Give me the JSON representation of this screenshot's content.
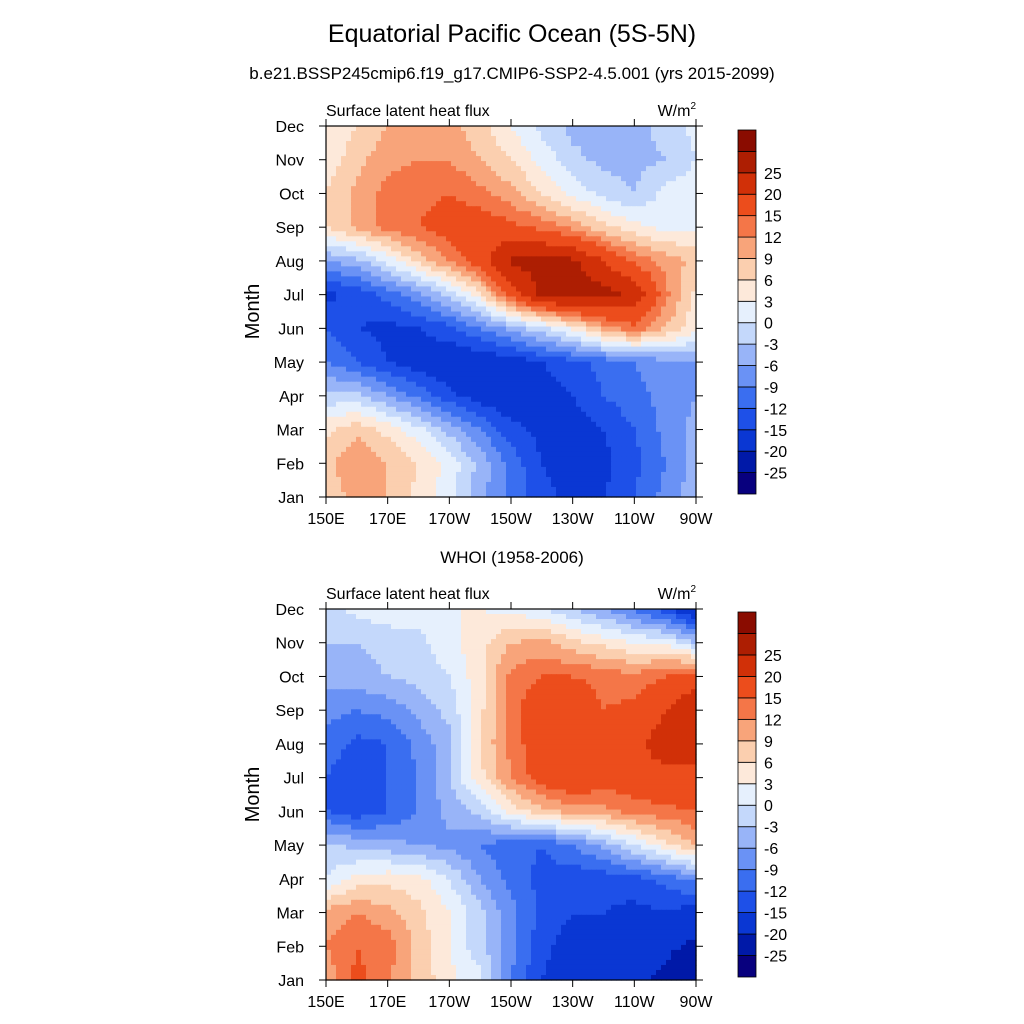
{
  "title": "Equatorial Pacific Ocean (5S-5N)",
  "subtitle": "b.e21.BSSP245cmip6.f19_g17.CMIP6-SSP2-4.5.001 (yrs 2015-2099)",
  "colors": {
    "levels": [
      "#08007e",
      "#0019a8",
      "#0a37d3",
      "#1e50e8",
      "#3a6ef0",
      "#6a92f5",
      "#98b4f8",
      "#c4d8fb",
      "#e6f0fd",
      "#fde9da",
      "#fbcfaf",
      "#f8a47a",
      "#f47648",
      "#ec4d1c",
      "#d13008",
      "#ad1e02",
      "#8a0c00"
    ]
  },
  "chart_data": [
    {
      "type": "heatmap",
      "panel_title": "",
      "left_label": "Surface latent heat flux",
      "right_label": "W/m",
      "right_label_sup": "2",
      "ylabel": "Month",
      "x_ticks": [
        "150E",
        "170E",
        "170W",
        "150W",
        "130W",
        "110W",
        "90W"
      ],
      "x_values": [
        150,
        170,
        190,
        210,
        230,
        250,
        270
      ],
      "xlim": [
        150,
        270
      ],
      "y_ticks": [
        "Jan",
        "Feb",
        "Mar",
        "Apr",
        "May",
        "Jun",
        "Jul",
        "Aug",
        "Sep",
        "Oct",
        "Nov",
        "Dec"
      ],
      "ylim": [
        1,
        12
      ],
      "colorbar_labels": [
        "-25",
        "-20",
        "-15",
        "-12",
        "-9",
        "-6",
        "-3",
        "0",
        "3",
        "6",
        "9",
        "12",
        "15",
        "20",
        "25"
      ],
      "contour_levels": [
        -25,
        -20,
        -15,
        -12,
        -9,
        -6,
        -3,
        0,
        3,
        6,
        9,
        12,
        15,
        20,
        25
      ],
      "z_rows_months": [
        "Jan",
        "Feb",
        "Mar",
        "Apr",
        "May",
        "Jun",
        "Jul",
        "Aug",
        "Sep",
        "Oct",
        "Nov",
        "Dec"
      ],
      "z_cols_lon": [
        150,
        160,
        170,
        180,
        190,
        200,
        210,
        220,
        230,
        240,
        250,
        260,
        270
      ],
      "z": [
        [
          7,
          10,
          9,
          5,
          1,
          -5,
          -10,
          -14,
          -16,
          -15,
          -12,
          -8,
          -4
        ],
        [
          8,
          12,
          9,
          6,
          2,
          -4,
          -10,
          -15,
          -17,
          -16,
          -13,
          -9,
          -5
        ],
        [
          5,
          8,
          5,
          1,
          -4,
          -9,
          -14,
          -16,
          -17,
          -15,
          -12,
          -8,
          -5
        ],
        [
          -2,
          -2,
          -6,
          -10,
          -14,
          -17,
          -18,
          -17,
          -15,
          -12,
          -10,
          -8,
          -6
        ],
        [
          -9,
          -12,
          -15,
          -17,
          -18,
          -18,
          -17,
          -15,
          -13,
          -11,
          -9,
          -7,
          -6
        ],
        [
          -12,
          -15,
          -16,
          -15,
          -13,
          -9,
          -5,
          -1,
          4,
          10,
          14,
          9,
          4
        ],
        [
          -16,
          -14,
          -11,
          -7,
          -2,
          5,
          17,
          26,
          28,
          27,
          24,
          13,
          5
        ],
        [
          -6,
          -4,
          1,
          7,
          12,
          18,
          26,
          27,
          26,
          20,
          14,
          11,
          8
        ],
        [
          6,
          10,
          13,
          15,
          17,
          18,
          16,
          14,
          11,
          7,
          4,
          2,
          2
        ],
        [
          6,
          10,
          13,
          14,
          15,
          13,
          10,
          6,
          2,
          -1,
          -3,
          1,
          2
        ],
        [
          4,
          8,
          11,
          12,
          12,
          9,
          6,
          2,
          -2,
          -4,
          -4,
          -3,
          0
        ],
        [
          3,
          6,
          9,
          10,
          10,
          7,
          3,
          -1,
          -4,
          -5,
          -4,
          -2,
          1
        ]
      ]
    },
    {
      "type": "heatmap",
      "panel_title": "WHOI (1958-2006)",
      "left_label": "Surface latent heat flux",
      "right_label": "W/m",
      "right_label_sup": "2",
      "ylabel": "Month",
      "x_ticks": [
        "150E",
        "170E",
        "170W",
        "150W",
        "130W",
        "110W",
        "90W"
      ],
      "x_values": [
        150,
        170,
        190,
        210,
        230,
        250,
        270
      ],
      "xlim": [
        150,
        270
      ],
      "y_ticks": [
        "Jan",
        "Feb",
        "Mar",
        "Apr",
        "May",
        "Jun",
        "Jul",
        "Aug",
        "Sep",
        "Oct",
        "Nov",
        "Dec"
      ],
      "ylim": [
        1,
        12
      ],
      "colorbar_labels": [
        "-25",
        "-20",
        "-15",
        "-12",
        "-9",
        "-6",
        "-3",
        "0",
        "3",
        "6",
        "9",
        "12",
        "15",
        "20",
        "25"
      ],
      "contour_levels": [
        -25,
        -20,
        -15,
        -12,
        -9,
        -6,
        -3,
        0,
        3,
        6,
        9,
        12,
        15,
        20,
        25
      ],
      "z_rows_months": [
        "Jan",
        "Feb",
        "Mar",
        "Apr",
        "May",
        "Jun",
        "Jul",
        "Aug",
        "Sep",
        "Oct",
        "Nov",
        "Dec"
      ],
      "z_cols_lon": [
        150,
        160,
        170,
        180,
        190,
        200,
        210,
        220,
        230,
        240,
        250,
        260,
        270
      ],
      "z": [
        [
          10,
          16,
          12,
          8,
          4,
          1,
          -9,
          -15,
          -18,
          -20,
          -19,
          -21,
          -25
        ],
        [
          12,
          15,
          14,
          8,
          3,
          -2,
          -8,
          -14,
          -17,
          -20,
          -19,
          -19,
          -21
        ],
        [
          10,
          12,
          10,
          7,
          3,
          -2,
          -8,
          -13,
          -15,
          -15,
          -16,
          -15,
          -17
        ],
        [
          0,
          4,
          5,
          4,
          0,
          -6,
          -10,
          -13,
          -14,
          -14,
          -13,
          -11,
          -8
        ],
        [
          -2,
          -4,
          -5,
          -6,
          -7,
          -9,
          -11,
          -12,
          -9,
          -5,
          0,
          5,
          9
        ],
        [
          -12,
          -14,
          -12,
          -9,
          -5,
          -2,
          4,
          8,
          10,
          11,
          13,
          14,
          15
        ],
        [
          -12,
          -15,
          -12,
          -9,
          -3,
          5,
          12,
          17,
          20,
          17,
          18,
          19,
          20
        ],
        [
          -10,
          -13,
          -12,
          -8,
          -4,
          6,
          13,
          18,
          20,
          16,
          19,
          22,
          20
        ],
        [
          -8,
          -9,
          -8,
          -5,
          -2,
          5,
          14,
          18,
          18,
          15,
          16,
          20,
          24
        ],
        [
          -5,
          -4,
          -3,
          -2,
          0,
          5,
          13,
          15,
          15,
          14,
          13,
          15,
          18
        ],
        [
          -3,
          -3,
          -2,
          -1,
          2,
          5,
          9,
          10,
          7,
          5,
          3,
          2,
          -3
        ],
        [
          -1,
          1,
          2,
          2,
          3,
          3,
          2,
          0,
          -3,
          -6,
          -10,
          -14,
          -20
        ]
      ]
    }
  ]
}
